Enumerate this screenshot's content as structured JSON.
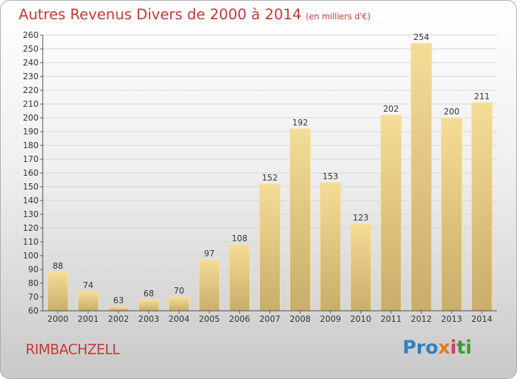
{
  "title": "Autres Revenus Divers de 2000 à 2014",
  "subtitle": "(en milliers d'€)",
  "town": "RIMBACHZELL",
  "logo": {
    "p1": "Pro",
    "p2": "x",
    "p3": "i",
    "p4": "ti"
  },
  "colors": {
    "title": "#c53a3a",
    "bar": "#e8c97a",
    "grid": "#d6d6d6"
  },
  "chart_data": {
    "type": "bar",
    "categories": [
      "2000",
      "2001",
      "2002",
      "2003",
      "2004",
      "2005",
      "2006",
      "2007",
      "2008",
      "2009",
      "2010",
      "2011",
      "2012",
      "2013",
      "2014"
    ],
    "values": [
      88,
      74,
      63,
      68,
      70,
      97,
      108,
      152,
      192,
      153,
      123,
      202,
      254,
      200,
      211
    ],
    "ylim": [
      60,
      260
    ],
    "yticks": [
      60,
      70,
      80,
      90,
      100,
      110,
      120,
      130,
      140,
      150,
      160,
      170,
      180,
      190,
      200,
      210,
      220,
      230,
      240,
      250,
      260
    ],
    "grid": true
  }
}
